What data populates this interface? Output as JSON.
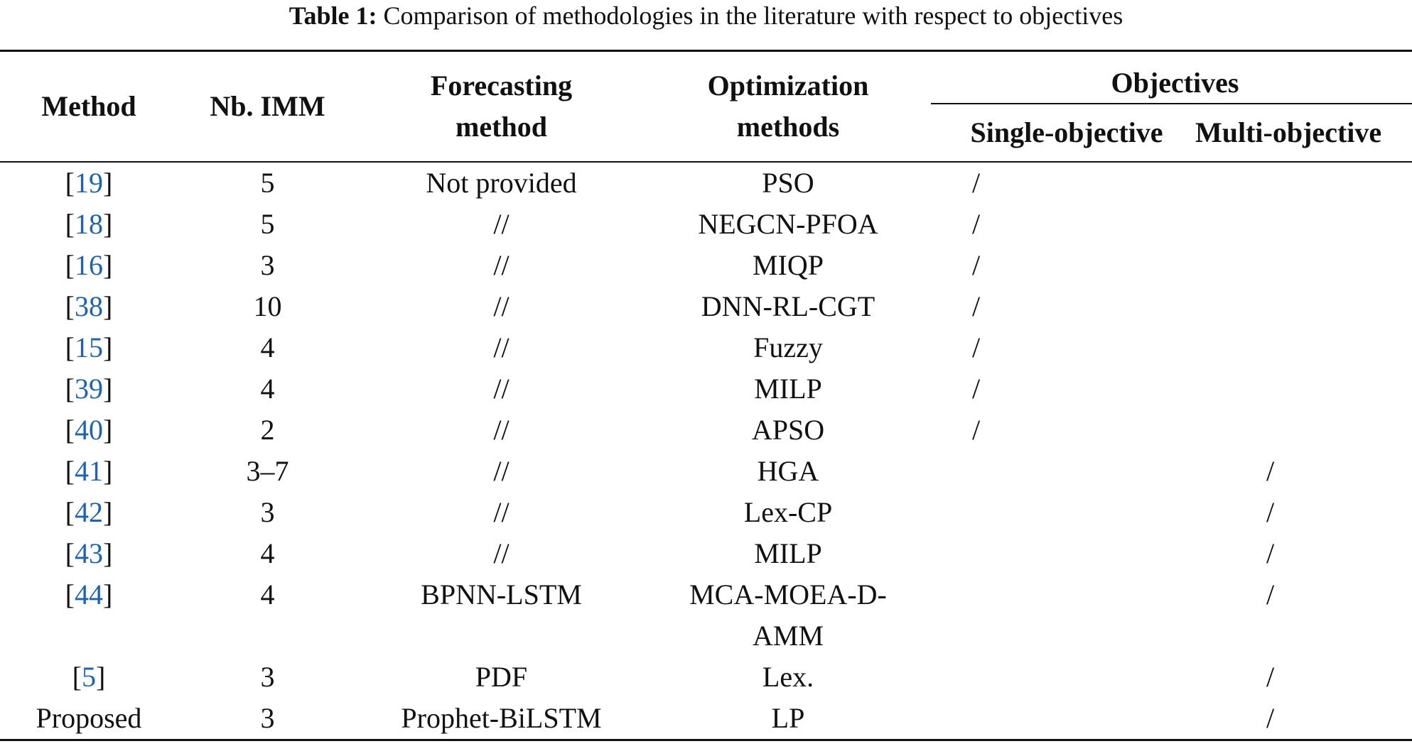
{
  "caption": {
    "label": "Table 1:",
    "text": "Comparison of methodologies in the literature with respect to objectives"
  },
  "header": {
    "method": "Method",
    "nb_imm": "Nb. IMM",
    "forecasting_1": "Forecasting",
    "forecasting_2": "method",
    "optimization_1": "Optimization",
    "optimization_2": "methods",
    "objectives": "Objectives",
    "single": "Single-objective",
    "multi": "Multi-objective"
  },
  "colors": {
    "ref_link": "#1b63b7",
    "rule": "#111111"
  },
  "rows": [
    {
      "ref": "19",
      "method_text": "",
      "imm": "5",
      "forecast": "Not provided",
      "opt": "PSO",
      "single": "/",
      "multi": ""
    },
    {
      "ref": "18",
      "method_text": "",
      "imm": "5",
      "forecast": "//",
      "opt": "NEGCN-PFOA",
      "single": "/",
      "multi": ""
    },
    {
      "ref": "16",
      "method_text": "",
      "imm": "3",
      "forecast": "//",
      "opt": "MIQP",
      "single": "/",
      "multi": ""
    },
    {
      "ref": "38",
      "method_text": "",
      "imm": "10",
      "forecast": "//",
      "opt": "DNN-RL-CGT",
      "single": "/",
      "multi": ""
    },
    {
      "ref": "15",
      "method_text": "",
      "imm": "4",
      "forecast": "//",
      "opt": "Fuzzy",
      "single": "/",
      "multi": ""
    },
    {
      "ref": "39",
      "method_text": "",
      "imm": "4",
      "forecast": "//",
      "opt": "MILP",
      "single": "/",
      "multi": ""
    },
    {
      "ref": "40",
      "method_text": "",
      "imm": "2",
      "forecast": "//",
      "opt": "APSO",
      "single": "/",
      "multi": ""
    },
    {
      "ref": "41",
      "method_text": "",
      "imm": "3–7",
      "forecast": "//",
      "opt": "HGA",
      "single": "",
      "multi": "/"
    },
    {
      "ref": "42",
      "method_text": "",
      "imm": "3",
      "forecast": "//",
      "opt": "Lex-CP",
      "single": "",
      "multi": "/"
    },
    {
      "ref": "43",
      "method_text": "",
      "imm": "4",
      "forecast": "//",
      "opt": "MILP",
      "single": "",
      "multi": "/"
    },
    {
      "ref": "44",
      "method_text": "",
      "imm": "4",
      "forecast": "BPNN-LSTM",
      "opt": "MCA-MOEA-D-AMM",
      "opt_line1": "MCA-MOEA-D-",
      "opt_line2": "AMM",
      "single": "",
      "multi": "/"
    },
    {
      "ref": "5",
      "method_text": "",
      "imm": "3",
      "forecast": "PDF",
      "opt": "Lex.",
      "single": "",
      "multi": "/"
    },
    {
      "ref": "",
      "method_text": "Proposed",
      "imm": "3",
      "forecast": "Prophet-BiLSTM",
      "opt": "LP",
      "single": "",
      "multi": "/"
    }
  ],
  "bracket_open": "[",
  "bracket_close": "]"
}
